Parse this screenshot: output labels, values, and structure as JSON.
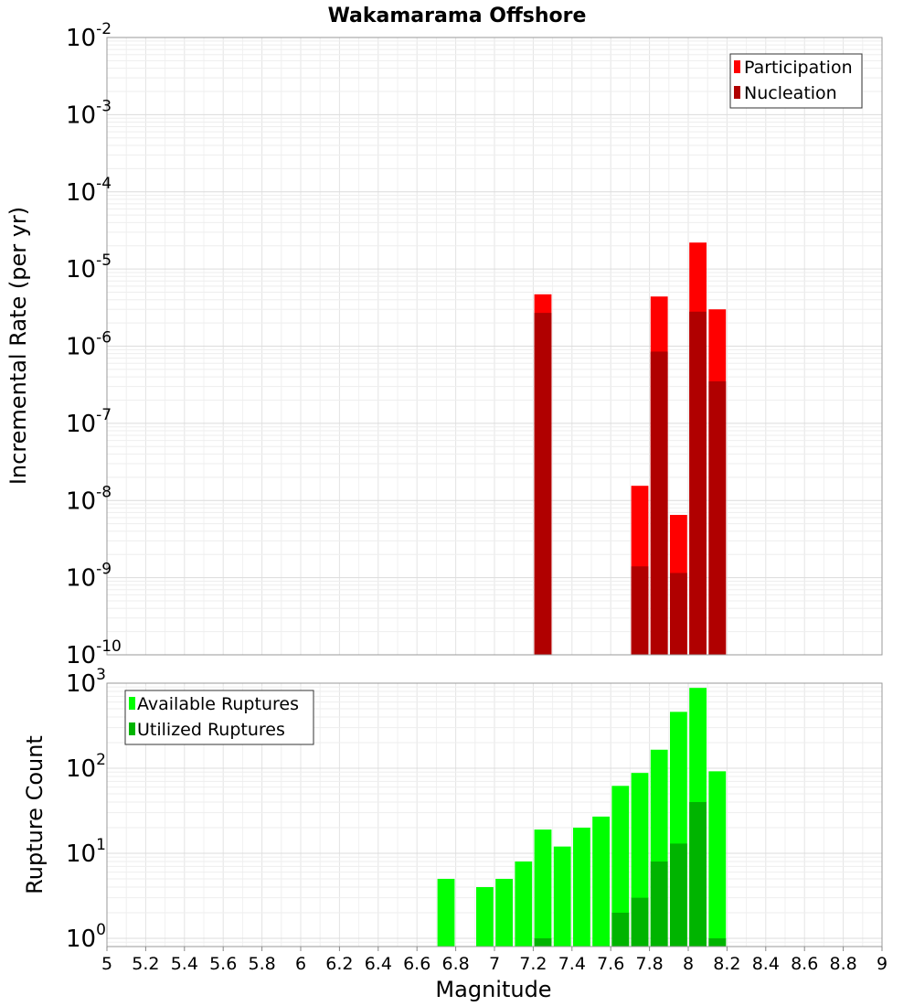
{
  "chart_data": [
    {
      "type": "bar",
      "title": "Wakamarama Offshore",
      "ylabel": "Incremental Rate (per yr)",
      "xlabel": "",
      "yscale": "log",
      "ylim": [
        1e-10,
        0.01
      ],
      "xlim": [
        5,
        9
      ],
      "y_ticks": [
        {
          "base": "10",
          "exp": "-10",
          "value": 1e-10
        },
        {
          "base": "10",
          "exp": "-9",
          "value": 1e-09
        },
        {
          "base": "10",
          "exp": "-8",
          "value": 1e-08
        },
        {
          "base": "10",
          "exp": "-7",
          "value": 1e-07
        },
        {
          "base": "10",
          "exp": "-6",
          "value": 1e-06
        },
        {
          "base": "10",
          "exp": "-5",
          "value": 1e-05
        },
        {
          "base": "10",
          "exp": "-4",
          "value": 0.0001
        },
        {
          "base": "10",
          "exp": "-3",
          "value": 0.001
        },
        {
          "base": "10",
          "exp": "-2",
          "value": 0.01
        }
      ],
      "legend_position": "top-right",
      "grid": true,
      "series": [
        {
          "name": "Participation",
          "color": "#ff0000",
          "points": [
            {
              "x": 7.25,
              "y": 4.7e-06
            },
            {
              "x": 7.75,
              "y": 1.55e-08
            },
            {
              "x": 7.85,
              "y": 4.4e-06
            },
            {
              "x": 7.95,
              "y": 6.5e-09
            },
            {
              "x": 8.05,
              "y": 2.2e-05
            },
            {
              "x": 8.15,
              "y": 3e-06
            }
          ]
        },
        {
          "name": "Nucleation",
          "color": "#b00000",
          "points": [
            {
              "x": 7.25,
              "y": 2.7e-06
            },
            {
              "x": 7.75,
              "y": 1.4e-09
            },
            {
              "x": 7.85,
              "y": 8.5e-07
            },
            {
              "x": 7.95,
              "y": 1.15e-09
            },
            {
              "x": 8.05,
              "y": 2.8e-06
            },
            {
              "x": 8.15,
              "y": 3.5e-07
            }
          ]
        }
      ]
    },
    {
      "type": "bar",
      "title": "",
      "ylabel": "Rupture Count",
      "xlabel": "Magnitude",
      "yscale": "log",
      "ylim": [
        0.8,
        1000
      ],
      "xlim": [
        5,
        9
      ],
      "y_ticks": [
        {
          "base": "10",
          "exp": "0",
          "value": 1
        },
        {
          "base": "10",
          "exp": "1",
          "value": 10
        },
        {
          "base": "10",
          "exp": "2",
          "value": 100
        },
        {
          "base": "10",
          "exp": "3",
          "value": 1000
        }
      ],
      "x_ticks": [
        "5",
        "5.2",
        "5.4",
        "5.6",
        "5.8",
        "6",
        "6.2",
        "6.4",
        "6.6",
        "6.8",
        "7",
        "7.2",
        "7.4",
        "7.6",
        "7.8",
        "8",
        "8.2",
        "8.4",
        "8.6",
        "8.8",
        "9"
      ],
      "legend_position": "top-left",
      "grid": true,
      "series": [
        {
          "name": "Available Ruptures",
          "color": "#00ff00",
          "points": [
            {
              "x": 6.75,
              "y": 5
            },
            {
              "x": 6.95,
              "y": 4
            },
            {
              "x": 7.05,
              "y": 5
            },
            {
              "x": 7.15,
              "y": 8
            },
            {
              "x": 7.25,
              "y": 19
            },
            {
              "x": 7.35,
              "y": 12
            },
            {
              "x": 7.45,
              "y": 20
            },
            {
              "x": 7.55,
              "y": 27
            },
            {
              "x": 7.65,
              "y": 62
            },
            {
              "x": 7.75,
              "y": 88
            },
            {
              "x": 7.85,
              "y": 165
            },
            {
              "x": 7.95,
              "y": 460
            },
            {
              "x": 8.05,
              "y": 880
            },
            {
              "x": 8.15,
              "y": 92
            }
          ]
        },
        {
          "name": "Utilized Ruptures",
          "color": "#00b400",
          "points": [
            {
              "x": 7.25,
              "y": 1
            },
            {
              "x": 7.65,
              "y": 2
            },
            {
              "x": 7.75,
              "y": 3
            },
            {
              "x": 7.85,
              "y": 8
            },
            {
              "x": 7.95,
              "y": 13
            },
            {
              "x": 8.05,
              "y": 40
            },
            {
              "x": 8.15,
              "y": 1
            }
          ]
        }
      ]
    }
  ]
}
